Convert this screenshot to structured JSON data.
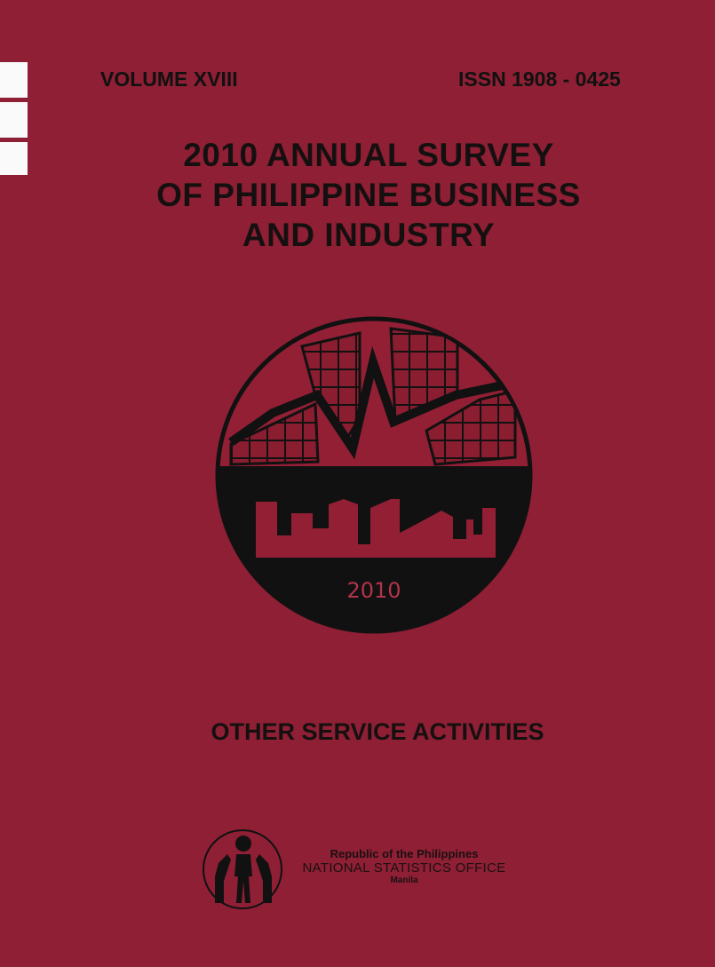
{
  "cover": {
    "volume": "VOLUME XVIII",
    "issn": "ISSN 1908 - 0425",
    "title_lines": [
      "2010 ANNUAL SURVEY",
      "OF PHILIPPINE BUSINESS",
      "AND INDUSTRY"
    ],
    "emblem_year": "2010",
    "subject": "OTHER SERVICE ACTIVITIES"
  },
  "publisher": {
    "line1": "Republic of the Philippines",
    "line2": "NATIONAL STATISTICS OFFICE",
    "line3": "Manila"
  },
  "colors": {
    "background": "#8e1f34",
    "ink": "#111111"
  }
}
